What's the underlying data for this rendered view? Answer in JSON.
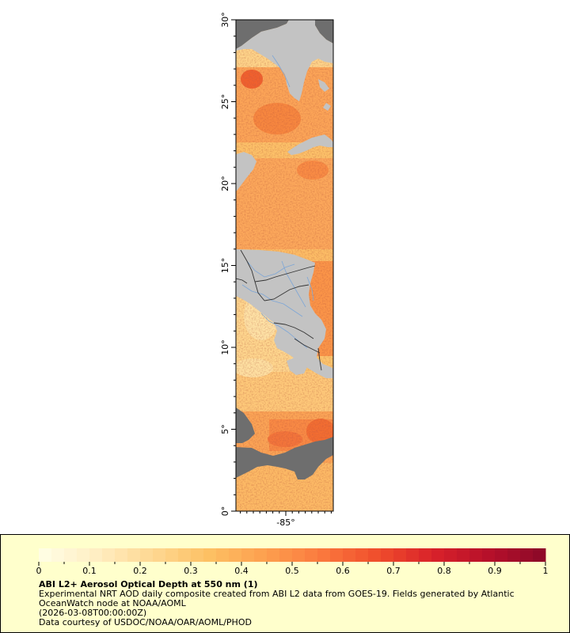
{
  "map": {
    "y_axis": {
      "range": [
        0,
        30
      ],
      "ticks": [
        {
          "value": 0,
          "label": "0°"
        },
        {
          "value": 5,
          "label": "5°"
        },
        {
          "value": 10,
          "label": "10°"
        },
        {
          "value": 15,
          "label": "15°"
        },
        {
          "value": 20,
          "label": "20°"
        },
        {
          "value": 25,
          "label": "25°"
        },
        {
          "value": 30,
          "label": "30°"
        }
      ]
    },
    "x_axis": {
      "ticks": [
        {
          "value": -85,
          "label": "-85°"
        }
      ]
    },
    "colors": {
      "land": "#c3c3c3",
      "no_data": "#6e6e6e",
      "rivers": "#7da6d6",
      "borders": "#333333"
    }
  },
  "legend": {
    "range": [
      0,
      1
    ],
    "ticks": [
      {
        "value": 0,
        "label": "0"
      },
      {
        "value": 0.1,
        "label": "0.1"
      },
      {
        "value": 0.2,
        "label": "0.2"
      },
      {
        "value": 0.3,
        "label": "0.3"
      },
      {
        "value": 0.4,
        "label": "0.4"
      },
      {
        "value": 0.5,
        "label": "0.5"
      },
      {
        "value": 0.6,
        "label": "0.6"
      },
      {
        "value": 0.7,
        "label": "0.7"
      },
      {
        "value": 0.8,
        "label": "0.8"
      },
      {
        "value": 0.9,
        "label": "0.9"
      },
      {
        "value": 1,
        "label": "1"
      }
    ],
    "colormap": [
      "#ffffe6",
      "#ffeec4",
      "#fed893",
      "#fdc164",
      "#fda04f",
      "#fb7a3e",
      "#f04e2c",
      "#d9222a",
      "#b6102a",
      "#8a0828"
    ],
    "panel_background": "#ffffcc",
    "title": "ABI L2+ Aerosol Optical Depth at 550 nm (1)",
    "description": "Experimental NRT AOD daily composite created from ABI L2 data from GOES-19. Fields generated by Atlantic OceanWatch node at NOAA/AOML",
    "timestamp": "(2026-03-08T00:00:00Z)",
    "credit": "Data courtesy of USDOC/NOAA/OAR/AOML/PHOD"
  }
}
